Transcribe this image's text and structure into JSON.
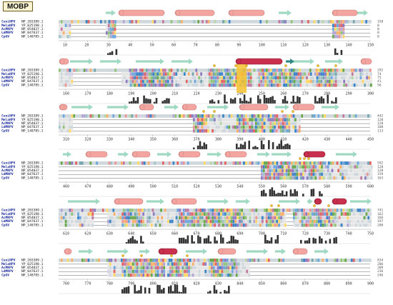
{
  "figure_title": "MOBP",
  "sequences": [
    {
      "name": "CuniNPV",
      "accession": "NP_203389.1"
    },
    {
      "name": "MelaNPV",
      "accession": "YP_025198.1"
    },
    {
      "name": "AcMNPV",
      "accession": "NP_054037.1"
    },
    {
      "name": "LdMNPV",
      "accession": "NP_047637.1"
    },
    {
      "name": "CpGV",
      "accession": "NP_148785.1"
    }
  ],
  "blocks": [
    {
      "ticks": [
        "10",
        "20",
        "30",
        "40",
        "50",
        "60",
        "70",
        "80",
        "90",
        "100",
        "110",
        "120",
        "130",
        "140",
        "150"
      ],
      "end_numbers": [
        "150",
        "0",
        "0",
        "0",
        "0"
      ]
    },
    {
      "ticks": [
        "160",
        "170",
        "180",
        "190",
        "200",
        "210",
        "220",
        "230",
        "240",
        "250",
        "260",
        "270",
        "280",
        "290",
        "300"
      ],
      "end_numbers": [
        "292",
        "74",
        "75",
        "41",
        "56"
      ]
    },
    {
      "ticks": [
        "310",
        "320",
        "330",
        "340",
        "350",
        "360",
        "370",
        "380",
        "390",
        "400",
        "410",
        "420",
        "430",
        "440",
        "450"
      ],
      "end_numbers": [
        "442",
        "120",
        "120",
        "108",
        "113"
      ]
    },
    {
      "ticks": [
        "460",
        "470",
        "480",
        "490",
        "500",
        "510",
        "520",
        "530",
        "540",
        "550",
        "560",
        "570",
        "580",
        "590",
        "600"
      ],
      "end_numbers": [
        "592",
        "120",
        "120",
        "159",
        "163"
      ]
    },
    {
      "ticks": [
        "610",
        "620",
        "630",
        "640",
        "650",
        "660",
        "670",
        "680",
        "690",
        "700",
        "710",
        "720",
        "730",
        "740",
        "750"
      ],
      "end_numbers": [
        "741",
        "162",
        "166",
        "197",
        "200"
      ]
    },
    {
      "ticks": [
        "760",
        "770",
        "780",
        "790",
        "800",
        "810",
        "820",
        "830",
        "840",
        "850",
        "860",
        "870",
        "880",
        "890",
        "900"
      ],
      "end_numbers": [
        "834",
        "206",
        "209",
        "236",
        "246"
      ]
    }
  ],
  "colors": {
    "helix": "#f4a5a0",
    "helix_highlight": "#c8304e",
    "strand": "#9fd9c2",
    "strand_highlight": "#2f8a85",
    "highlight_column": "#f6c22f",
    "conservation_bar": "#333333",
    "residue_palette": [
      "#6aa84f",
      "#93c47d",
      "#3d85c6",
      "#6fa8dc",
      "#8e7cc3",
      "#b4a7d6",
      "#c27ba0",
      "#e06666",
      "#f6b26b",
      "#ffd966",
      "#76a5af",
      "#a2c4c9",
      "#d9d2e9",
      "#b6d7a8",
      "#ea9999"
    ]
  }
}
